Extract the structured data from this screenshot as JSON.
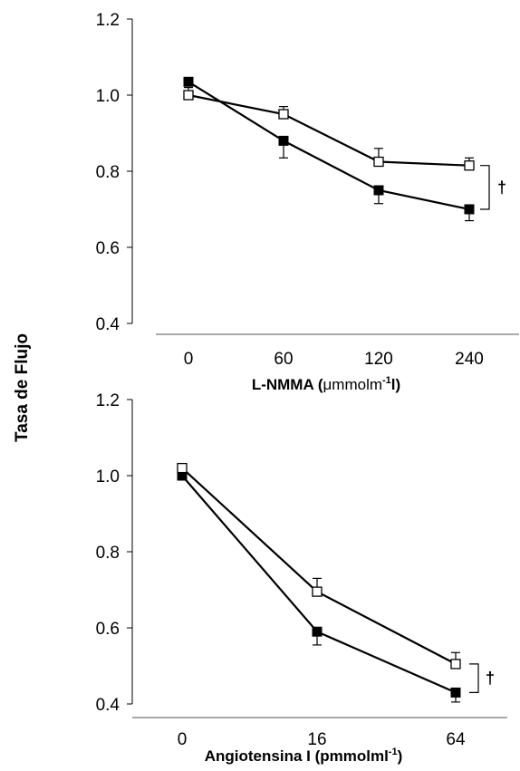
{
  "figure": {
    "ylabel": "Tasa de Flujo"
  },
  "chart_data": [
    {
      "type": "line",
      "xlabel_prefix": "L-NMMA (",
      "xlabel_unit": "μmmolm",
      "xlabel_sup": "-1",
      "xlabel_suffix": "l)",
      "categories": [
        "0",
        "60",
        "120",
        "240"
      ],
      "ylim": [
        0.4,
        1.2
      ],
      "yticks": [
        "0.4",
        "0.6",
        "0.8",
        "1.0",
        "1.2"
      ],
      "series": [
        {
          "marker": "filled-square",
          "values": [
            1.035,
            0.88,
            0.75,
            0.7
          ],
          "errors": [
            0,
            0.045,
            0.035,
            0.03
          ]
        },
        {
          "marker": "open-square",
          "values": [
            1.0,
            0.95,
            0.825,
            0.815
          ],
          "errors": [
            0.02,
            0.02,
            0.035,
            0.02
          ]
        }
      ],
      "annotation": "†",
      "grid": false
    },
    {
      "type": "line",
      "xlabel_prefix": "Angiotensina I  (pmmolml",
      "xlabel_unit": "",
      "xlabel_sup": "-1",
      "xlabel_suffix": ")",
      "categories": [
        "0",
        "16",
        "64"
      ],
      "ylim": [
        0.4,
        1.2
      ],
      "yticks": [
        "0.4",
        "0.6",
        "0.8",
        "1.0",
        "1.2"
      ],
      "series": [
        {
          "marker": "filled-square",
          "values": [
            1.0,
            0.59,
            0.43
          ],
          "errors": [
            0,
            0.035,
            0.025
          ]
        },
        {
          "marker": "open-square",
          "values": [
            1.02,
            0.695,
            0.505
          ],
          "errors": [
            0,
            0.035,
            0.03
          ]
        }
      ],
      "annotation": "†",
      "grid": false
    }
  ]
}
